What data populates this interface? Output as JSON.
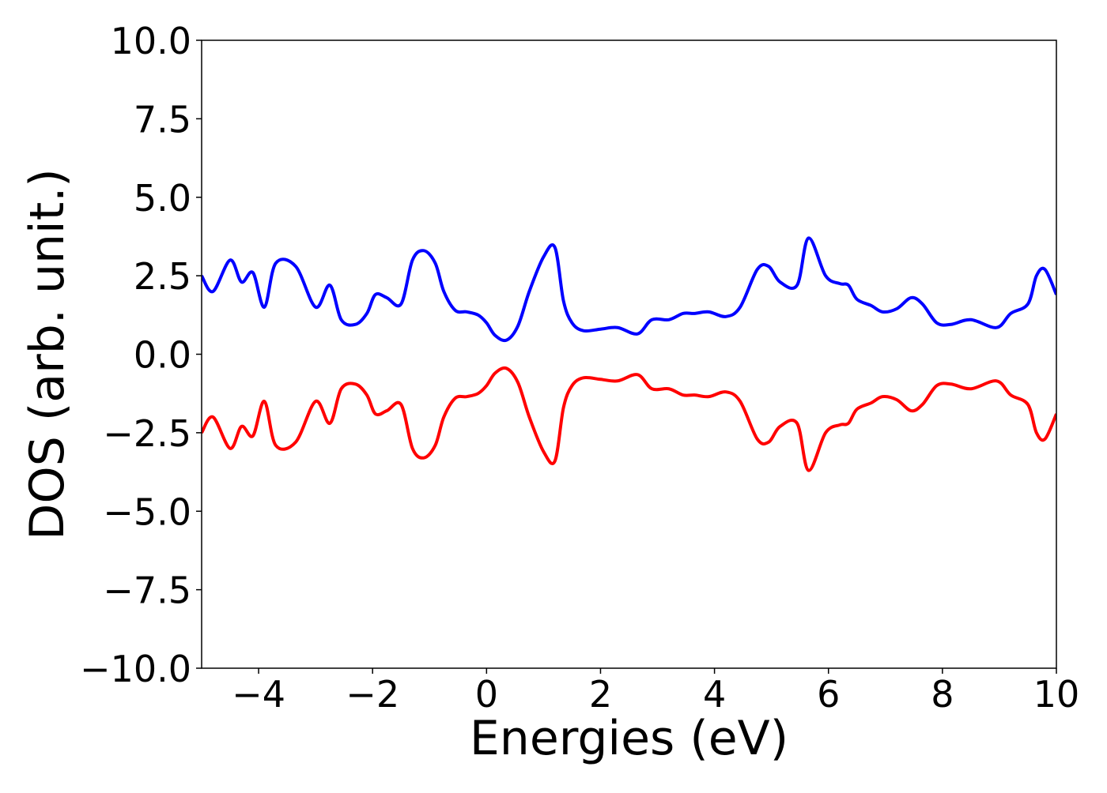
{
  "chart_data": {
    "type": "line",
    "xlabel": "Energies (eV)",
    "ylabel": "DOS (arb. unit.)",
    "xlim": [
      -5,
      10
    ],
    "ylim": [
      -10,
      10
    ],
    "xticks": [
      -4,
      -2,
      0,
      2,
      4,
      6,
      8,
      10
    ],
    "xtick_labels": [
      "−4",
      "−2",
      "0",
      "2",
      "4",
      "6",
      "8",
      "10"
    ],
    "yticks": [
      -10,
      -7.5,
      -5,
      -2.5,
      0,
      2.5,
      5,
      7.5,
      10
    ],
    "ytick_labels": [
      "−10.0",
      "−7.5",
      "−5.0",
      "−2.5",
      "0.0",
      "2.5",
      "5.0",
      "7.5",
      "10.0"
    ],
    "grid": false,
    "legend": false,
    "series": [
      {
        "color": "#0000ff",
        "x": [
          -5,
          -4.8,
          -4.5,
          -4.3,
          -4.1,
          -3.9,
          -3.7,
          -3.35,
          -3.0,
          -2.75,
          -2.55,
          -2.3,
          -2.1,
          -1.95,
          -1.75,
          -1.5,
          -1.3,
          -1.1,
          -0.9,
          -0.75,
          -0.55,
          -0.35,
          -0.15,
          0,
          0.15,
          0.35,
          0.55,
          0.75,
          1.0,
          1.2,
          1.35,
          1.5,
          1.7,
          2.0,
          2.3,
          2.65,
          2.9,
          3.2,
          3.45,
          3.65,
          3.9,
          4.2,
          4.45,
          4.75,
          4.95,
          5.15,
          5.45,
          5.65,
          5.95,
          6.2,
          6.35,
          6.5,
          6.75,
          6.95,
          7.2,
          7.45,
          7.65,
          7.9,
          8.15,
          8.5,
          8.95,
          9.2,
          9.5,
          9.65,
          9.8,
          10
        ],
        "values": [
          2.5,
          2.0,
          3.0,
          2.3,
          2.6,
          1.5,
          2.9,
          2.8,
          1.5,
          2.2,
          1.1,
          0.95,
          1.3,
          1.9,
          1.8,
          1.6,
          3.0,
          3.3,
          2.9,
          2.0,
          1.4,
          1.35,
          1.25,
          1.0,
          0.6,
          0.45,
          0.9,
          2.0,
          3.1,
          3.4,
          1.7,
          1.0,
          0.75,
          0.8,
          0.85,
          0.65,
          1.1,
          1.1,
          1.3,
          1.3,
          1.35,
          1.2,
          1.5,
          2.7,
          2.8,
          2.3,
          2.2,
          3.7,
          2.5,
          2.25,
          2.2,
          1.75,
          1.55,
          1.35,
          1.45,
          1.8,
          1.6,
          1.0,
          0.95,
          1.1,
          0.85,
          1.3,
          1.6,
          2.5,
          2.7,
          1.9
        ]
      },
      {
        "color": "#ff0000",
        "x": [
          -5,
          -4.8,
          -4.5,
          -4.3,
          -4.1,
          -3.9,
          -3.7,
          -3.35,
          -3.0,
          -2.75,
          -2.55,
          -2.3,
          -2.1,
          -1.95,
          -1.75,
          -1.5,
          -1.3,
          -1.1,
          -0.9,
          -0.75,
          -0.55,
          -0.35,
          -0.15,
          0,
          0.15,
          0.35,
          0.55,
          0.75,
          1.0,
          1.2,
          1.35,
          1.5,
          1.7,
          2.0,
          2.3,
          2.65,
          2.9,
          3.2,
          3.45,
          3.65,
          3.9,
          4.2,
          4.45,
          4.75,
          4.95,
          5.15,
          5.45,
          5.65,
          5.95,
          6.2,
          6.35,
          6.5,
          6.75,
          6.95,
          7.2,
          7.45,
          7.65,
          7.9,
          8.15,
          8.5,
          8.95,
          9.2,
          9.5,
          9.65,
          9.8,
          10
        ],
        "values": [
          -2.5,
          -2.0,
          -3.0,
          -2.3,
          -2.6,
          -1.5,
          -2.9,
          -2.8,
          -1.5,
          -2.2,
          -1.1,
          -0.95,
          -1.3,
          -1.9,
          -1.8,
          -1.6,
          -3.0,
          -3.3,
          -2.9,
          -2.0,
          -1.4,
          -1.35,
          -1.25,
          -1.0,
          -0.6,
          -0.45,
          -0.9,
          -2.0,
          -3.1,
          -3.4,
          -1.7,
          -1.0,
          -0.75,
          -0.8,
          -0.85,
          -0.65,
          -1.1,
          -1.1,
          -1.3,
          -1.3,
          -1.35,
          -1.2,
          -1.5,
          -2.7,
          -2.8,
          -2.3,
          -2.2,
          -3.7,
          -2.5,
          -2.25,
          -2.2,
          -1.75,
          -1.55,
          -1.35,
          -1.45,
          -1.8,
          -1.6,
          -1.0,
          -0.95,
          -1.1,
          -0.85,
          -1.3,
          -1.6,
          -2.5,
          -2.7,
          -1.9
        ]
      }
    ]
  }
}
